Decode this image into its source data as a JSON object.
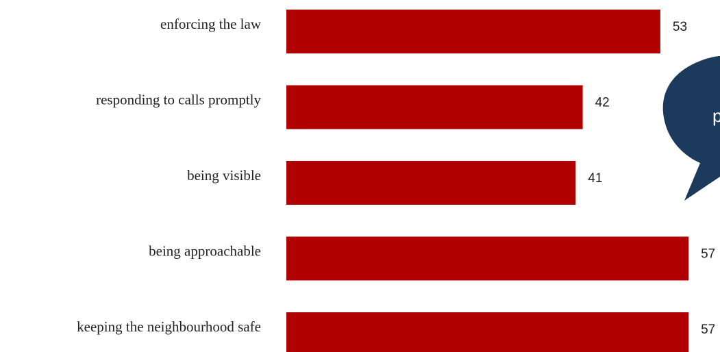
{
  "chart_data": {
    "type": "bar",
    "orientation": "horizontal",
    "categories": [
      "enforcing the law",
      "responding to calls promptly",
      "being visible",
      "being approachable",
      "keeping the neighbourhood safe"
    ],
    "values": [
      53,
      42,
      41,
      57,
      57
    ],
    "bar_color": "#b00000",
    "grid": false,
    "value_labels": [
      "53",
      "42",
      "41",
      "57",
      "57"
    ]
  },
  "callout": {
    "text": "p",
    "color": "#1b3a5c"
  }
}
